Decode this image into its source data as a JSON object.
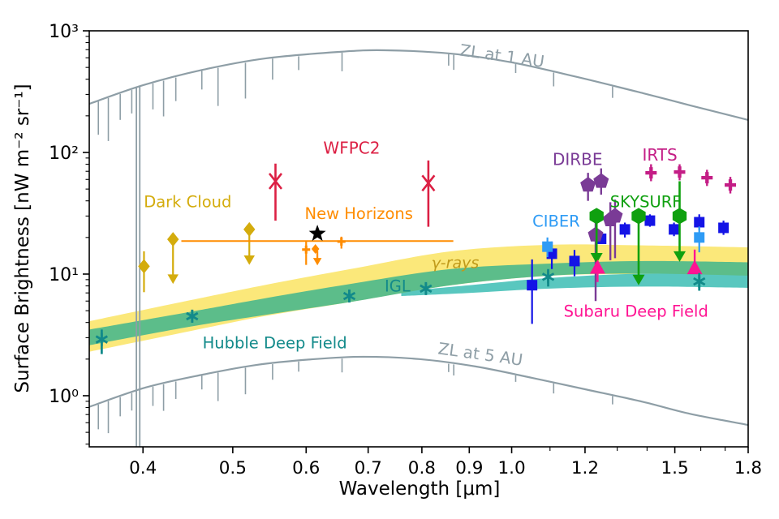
{
  "chart_data": {
    "type": "scatter",
    "title": "",
    "xlabel": "Wavelength [μm]",
    "ylabel": "Surface Brightness [nW m⁻² sr⁻¹]",
    "xscale": "log",
    "yscale": "log",
    "xlim": [
      0.35,
      1.8
    ],
    "ylim": [
      0.38,
      1000
    ],
    "grid": false,
    "xticks": [
      {
        "v": 0.4,
        "label": "0.4"
      },
      {
        "v": 0.5,
        "label": "0.5"
      },
      {
        "v": 0.6,
        "label": "0.6"
      },
      {
        "v": 0.7,
        "label": "0.7"
      },
      {
        "v": 0.8,
        "label": "0.8"
      },
      {
        "v": 0.9,
        "label": "0.9"
      },
      {
        "v": 1.0,
        "label": "1.0"
      },
      {
        "v": 1.2,
        "label": "1.2"
      },
      {
        "v": 1.5,
        "label": "1.5"
      },
      {
        "v": 1.8,
        "label": "1.8"
      }
    ],
    "xminorticks": [
      1.1,
      1.3,
      1.4,
      1.6,
      1.7
    ],
    "yticks": [
      {
        "v": 1,
        "label": "10⁰"
      },
      {
        "v": 10,
        "label": "10¹"
      },
      {
        "v": 100,
        "label": "10²"
      },
      {
        "v": 1000,
        "label": "10³"
      }
    ],
    "bands": [
      {
        "name": "gamma-rays band",
        "color": "#FBE87A",
        "x": [
          0.35,
          0.45,
          0.54,
          0.67,
          0.86,
          1.1,
          1.39,
          1.8
        ],
        "top": [
          4.1,
          6.1,
          8.1,
          11.0,
          15.4,
          17.4,
          17.2,
          16.6
        ],
        "bottom": [
          2.3,
          3.4,
          4.5,
          5.9,
          8.1,
          9.7,
          10.0,
          10.1
        ]
      },
      {
        "name": "teal IGL band",
        "color": "#59C7BF",
        "x": [
          0.76,
          0.9,
          1.1,
          1.4,
          1.8
        ],
        "top": [
          7.2,
          8.1,
          9.3,
          10.1,
          9.9
        ],
        "bottom": [
          6.6,
          7.0,
          7.6,
          7.9,
          7.7
        ]
      },
      {
        "name": "green IGL band",
        "color": "#5CBD8A",
        "x": [
          0.35,
          0.45,
          0.54,
          0.67,
          0.86,
          1.1,
          1.39,
          1.8
        ],
        "top": [
          3.5,
          4.9,
          6.3,
          8.3,
          11.0,
          12.2,
          12.8,
          12.5
        ],
        "bottom": [
          2.6,
          3.7,
          4.6,
          5.9,
          8.1,
          9.7,
          10.1,
          9.7
        ]
      }
    ],
    "curves": [
      {
        "name": "ZL at 1 AU",
        "color": "#8E9EA6",
        "points": [
          [
            0.35,
            251
          ],
          [
            0.4,
            357
          ],
          [
            0.464,
            478
          ],
          [
            0.542,
            593
          ],
          [
            0.651,
            671
          ],
          [
            0.73,
            692
          ],
          [
            0.859,
            650
          ],
          [
            1.0,
            550
          ],
          [
            1.177,
            417
          ],
          [
            1.386,
            307
          ],
          [
            1.558,
            244
          ],
          [
            1.8,
            185
          ]
        ]
      },
      {
        "name": "ZL at 5 AU",
        "color": "#8E9EA6",
        "points": [
          [
            0.35,
            0.81
          ],
          [
            0.403,
            1.17
          ],
          [
            0.464,
            1.49
          ],
          [
            0.53,
            1.79
          ],
          [
            0.613,
            2.0
          ],
          [
            0.692,
            2.09
          ],
          [
            0.795,
            2.0
          ],
          [
            0.914,
            1.74
          ],
          [
            1.053,
            1.4
          ],
          [
            1.2,
            1.13
          ],
          [
            1.386,
            0.89
          ],
          [
            1.558,
            0.71
          ],
          [
            1.8,
            0.575
          ]
        ]
      }
    ],
    "absorption_features": {
      "deep_lines_x": [
        0.3935,
        0.3968
      ],
      "spikes": [
        [
          0.358,
          0.28
        ],
        [
          0.367,
          0.36
        ],
        [
          0.378,
          0.22
        ],
        [
          0.389,
          0.2
        ],
        [
          0.41,
          0.22
        ],
        [
          0.421,
          0.3
        ],
        [
          0.434,
          0.2
        ],
        [
          0.463,
          0.16
        ],
        [
          0.482,
          0.32
        ],
        [
          0.516,
          0.3
        ],
        [
          0.552,
          0.18
        ],
        [
          0.589,
          0.12
        ],
        [
          0.656,
          0.16
        ],
        [
          0.855,
          0.1
        ],
        [
          0.866,
          0.13
        ],
        [
          1.01,
          0.08
        ],
        [
          1.11,
          0.12
        ],
        [
          1.285,
          0.1
        ]
      ]
    },
    "series": [
      {
        "name": "WFPC2",
        "color": "#DC2044",
        "marker": "x",
        "size": 10,
        "lw": 2.6,
        "points": [
          {
            "x": 0.556,
            "y": 58,
            "ylo": 27.5,
            "yhi": 81
          },
          {
            "x": 0.813,
            "y": 56,
            "ylo": 24.5,
            "yhi": 86
          }
        ]
      },
      {
        "name": "Dark Cloud",
        "color": "#D4AC0D",
        "marker": "diamond",
        "size": 9,
        "lw": 2.2,
        "points": [
          {
            "x": 0.401,
            "y": 11.6,
            "ylo": 7.1,
            "yhi": 15.4
          },
          {
            "x": 0.431,
            "y": 19.3,
            "arrow_to": 8.3
          },
          {
            "x": 0.521,
            "y": 23.3,
            "arrow_to": 11.9
          }
        ]
      },
      {
        "name": "New Horizons",
        "color": "#FF8C00",
        "marker": "plus",
        "size": 5,
        "lw": 2.2,
        "hline": {
          "y": 18.7,
          "x0": 0.44,
          "x1": 0.865
        },
        "points": [
          {
            "x": 0.6,
            "y": 15.9,
            "ylo": 11.9,
            "yhi": 18.7
          },
          {
            "x": 0.614,
            "y": 16.1,
            "marker": "diamond",
            "size": 6
          },
          {
            "x": 0.617,
            "y": 15.5,
            "arrow_to": 11.8,
            "no_marker": true,
            "size": 7
          },
          {
            "x": 0.655,
            "y": 18.5,
            "ylo": 16.2,
            "yhi": 20.3
          }
        ]
      },
      {
        "name": "New Horizons star",
        "color": "#000000",
        "marker": "star",
        "size": 11,
        "lw": 2,
        "points": [
          {
            "x": 0.617,
            "y": 21.5
          }
        ]
      },
      {
        "name": "unlabeled blue squares",
        "color": "#1414E6",
        "marker": "square",
        "size": 9,
        "lw": 2.2,
        "points": [
          {
            "x": 1.052,
            "y": 8.1,
            "ylo": 3.9,
            "yhi": 13.2
          },
          {
            "x": 1.105,
            "y": 14.7,
            "ylo": 11.0,
            "yhi": 18.5
          },
          {
            "x": 1.169,
            "y": 12.8,
            "ylo": 9.6,
            "yhi": 15.8
          },
          {
            "x": 1.249,
            "y": 19.5
          },
          {
            "x": 1.325,
            "y": 23.3,
            "ylo": 20.0,
            "yhi": 26.5
          },
          {
            "x": 1.41,
            "y": 27.5,
            "ylo": 24.5,
            "yhi": 31.0
          },
          {
            "x": 1.497,
            "y": 23.3,
            "ylo": 20.5,
            "yhi": 26.5
          },
          {
            "x": 1.594,
            "y": 26.7,
            "ylo": 23.0,
            "yhi": 31.0
          },
          {
            "x": 1.693,
            "y": 24.0,
            "ylo": 21.0,
            "yhi": 27.5
          }
        ]
      },
      {
        "name": "CIBER",
        "color": "#2E9BF5",
        "marker": "square",
        "size": 9,
        "lw": 2.2,
        "points": [
          {
            "x": 1.093,
            "y": 16.8,
            "ylo": 13.8,
            "yhi": 20.0
          },
          {
            "x": 1.594,
            "y": 20.0,
            "ylo": 15.1,
            "yhi": 24.6
          }
        ]
      },
      {
        "name": "DIRBE",
        "color": "#7A3B96",
        "marker": "pentagon",
        "size": 10,
        "lw": 2.4,
        "points": [
          {
            "x": 1.209,
            "y": 54,
            "ylo": 40,
            "yhi": 68
          },
          {
            "x": 1.249,
            "y": 58,
            "ylo": 45,
            "yhi": 74
          },
          {
            "x": 1.232,
            "y": 21,
            "ylo": 6.0,
            "yhi": 28
          },
          {
            "x": 1.278,
            "y": 28,
            "ylo": 13,
            "yhi": 39
          },
          {
            "x": 1.293,
            "y": 30,
            "ylo": 13.5,
            "yhi": 41
          }
        ]
      },
      {
        "name": "SKYSURF",
        "color": "#0FA00F",
        "marker": "hexagon",
        "size": 10,
        "lw": 2.6,
        "points": [
          {
            "x": 1.235,
            "y": 30,
            "arrow_to": 12.2
          },
          {
            "x": 1.371,
            "y": 30,
            "arrow_to": 8.1
          },
          {
            "x": 1.518,
            "y": 30,
            "yhi": 58,
            "arrow_to": 12.6
          }
        ]
      },
      {
        "name": "IRTS",
        "color": "#C41E86",
        "marker": "plus",
        "size": 7,
        "lw": 2.4,
        "points": [
          {
            "x": 1.414,
            "y": 68,
            "ylo": 58,
            "yhi": 80
          },
          {
            "x": 1.518,
            "y": 69,
            "ylo": 59,
            "yhi": 80
          },
          {
            "x": 1.625,
            "y": 62,
            "ylo": 53,
            "yhi": 72
          },
          {
            "x": 1.722,
            "y": 54,
            "ylo": 46,
            "yhi": 63
          }
        ]
      },
      {
        "name": "Subaru Deep Field",
        "color": "#FF1493",
        "marker": "triangle-up",
        "size": 10,
        "lw": 2.4,
        "points": [
          {
            "x": 1.238,
            "y": 11.3,
            "ylo": 8.6
          },
          {
            "x": 1.576,
            "y": 11.2,
            "yhi": 15.9
          }
        ]
      },
      {
        "name": "Hubble Deep Field",
        "color": "#128A8A",
        "marker": "asterisk",
        "size": 8,
        "lw": 2.8,
        "points": [
          {
            "x": 0.361,
            "y": 2.9,
            "ylo": 2.2,
            "yhi": 3.5
          },
          {
            "x": 0.452,
            "y": 4.5,
            "ylo": 4.0,
            "yhi": 5.1
          },
          {
            "x": 0.668,
            "y": 6.6,
            "ylo": 5.9,
            "yhi": 7.4
          },
          {
            "x": 0.808,
            "y": 7.6,
            "ylo": 6.8,
            "yhi": 8.4
          },
          {
            "x": 1.095,
            "y": 9.5,
            "ylo": 7.9,
            "yhi": 11.0
          },
          {
            "x": 1.594,
            "y": 8.7,
            "ylo": 7.3,
            "yhi": 10.2
          }
        ]
      }
    ],
    "annotations": [
      {
        "text": "ZL at 1 AU",
        "x": 0.976,
        "y": 610,
        "color": "#8E9EA6",
        "rotate": 8,
        "size": 20
      },
      {
        "text": "ZL at 5 AU",
        "x": 0.925,
        "y": 2.15,
        "color": "#8E9EA6",
        "rotate": 8,
        "size": 20
      },
      {
        "text": "WFPC2",
        "x": 0.672,
        "y": 106,
        "color": "#DC2044",
        "size": 20
      },
      {
        "text": "Dark Cloud",
        "x": 0.447,
        "y": 38.6,
        "color": "#D4AC0D",
        "size": 19.5
      },
      {
        "text": "New Horizons",
        "x": 0.684,
        "y": 31,
        "color": "#FF8C00",
        "size": 19.5
      },
      {
        "text": "DIRBE",
        "x": 1.178,
        "y": 86,
        "color": "#7A3B96",
        "size": 20
      },
      {
        "text": "IRTS",
        "x": 1.445,
        "y": 93,
        "color": "#C41E86",
        "size": 20
      },
      {
        "text": "SKYSURF",
        "x": 1.395,
        "y": 38.6,
        "color": "#0FA00F",
        "size": 19.5
      },
      {
        "text": "CIBER",
        "x": 1.117,
        "y": 26.7,
        "color": "#2E9BF5",
        "size": 19.5
      },
      {
        "text": "Subaru Deep Field",
        "x": 1.362,
        "y": 4.86,
        "color": "#FF1493",
        "size": 19.5
      },
      {
        "text": "γ-rays",
        "x": 0.869,
        "y": 12.2,
        "color": "#C09A1A",
        "size": 19,
        "italic": true
      },
      {
        "text": "IGL",
        "x": 0.753,
        "y": 7.8,
        "color": "#128A8A",
        "size": 19.5
      },
      {
        "text": "Hubble Deep Field",
        "x": 0.555,
        "y": 2.67,
        "color": "#128A8A",
        "size": 19.5
      }
    ]
  }
}
